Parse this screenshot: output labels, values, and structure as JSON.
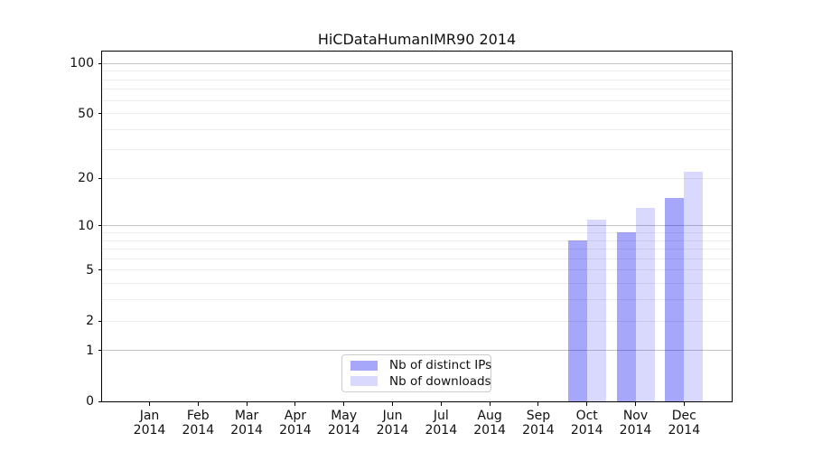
{
  "chart_data": {
    "type": "bar",
    "title": "HiCDataHumanIMR90 2014",
    "xlabel": "",
    "ylabel": "",
    "x_year_label": "2014",
    "categories": [
      "Jan",
      "Feb",
      "Mar",
      "Apr",
      "May",
      "Jun",
      "Jul",
      "Aug",
      "Sep",
      "Oct",
      "Nov",
      "Dec"
    ],
    "series": [
      {
        "name": "Nb of distinct IPs",
        "color": "#0000F0",
        "alpha": 0.35,
        "values": [
          0,
          0,
          0,
          0,
          0,
          0,
          0,
          0,
          0,
          8,
          9,
          15
        ]
      },
      {
        "name": "Nb of downloads",
        "color": "#0000F0",
        "alpha": 0.15,
        "values": [
          0,
          0,
          0,
          0,
          0,
          0,
          0,
          0,
          0,
          11,
          13,
          22
        ]
      }
    ],
    "y_scale": "log1p",
    "ylim": [
      0,
      117
    ],
    "y_ticks": [
      100,
      50,
      20,
      10,
      5,
      2,
      1,
      0
    ],
    "grid": {
      "major_values": [
        1,
        10,
        100
      ],
      "minor_values": [
        2,
        3,
        4,
        5,
        6,
        7,
        8,
        9,
        20,
        30,
        40,
        50,
        60,
        70,
        80,
        90
      ],
      "major_color": "#c3c3c3",
      "minor_color": "#ededed"
    },
    "legend": {
      "position": "bottom-center",
      "border_color": "#cccccc"
    },
    "frame_color": "#000000"
  }
}
